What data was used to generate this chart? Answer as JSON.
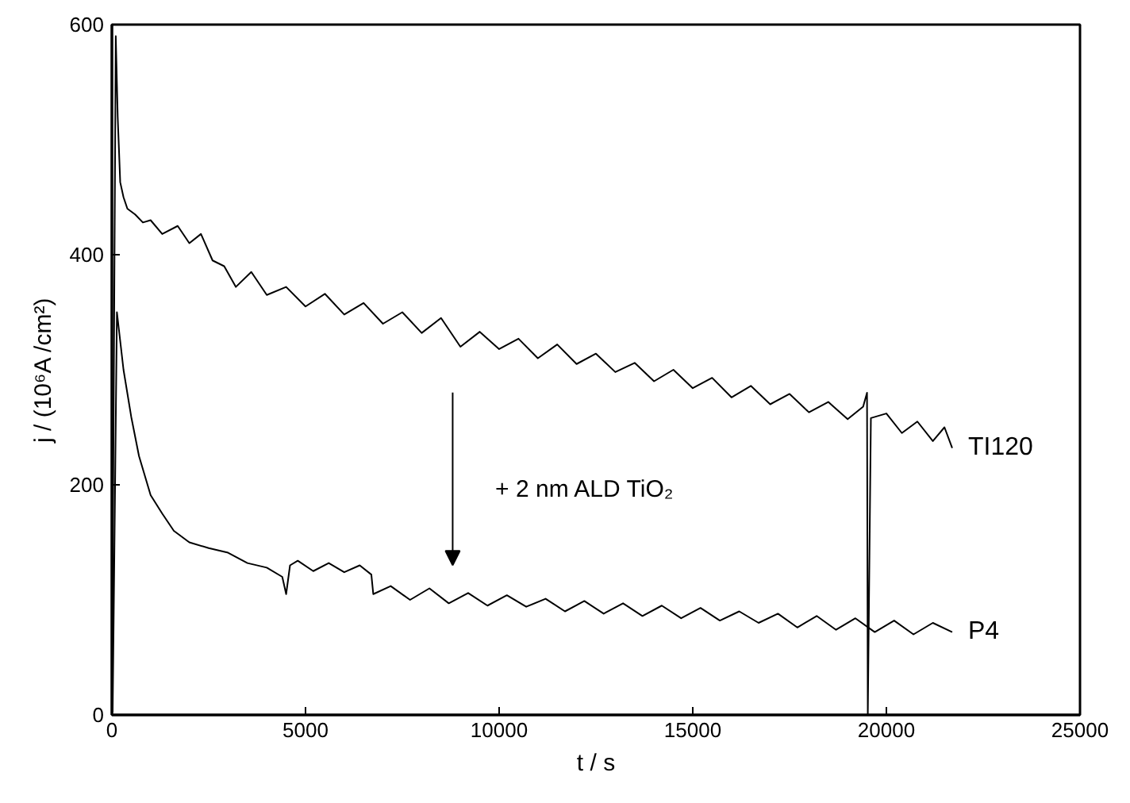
{
  "chart_data": {
    "type": "line",
    "xlabel": "t / s",
    "ylabel": "j / (10⁶A /cm²)",
    "xlim": [
      0,
      25000
    ],
    "xticks": [
      0,
      5000,
      10000,
      15000,
      20000,
      25000
    ],
    "ylim": [
      0,
      600
    ],
    "yticks": [
      0,
      200,
      400,
      600
    ],
    "grid": false,
    "legend": false,
    "marker": "none",
    "line_style": "solid",
    "annotations": [
      "+ 2 nm ALD TiO₂"
    ],
    "series": [
      {
        "name": "TI120",
        "color": "#000000",
        "x": [
          0,
          100,
          150,
          215,
          300,
          400,
          600,
          800,
          1000,
          1300,
          1700,
          2000,
          2300,
          2600,
          2900,
          3200,
          3600,
          4000,
          4500,
          5000,
          5500,
          6000,
          6500,
          7000,
          7500,
          8000,
          8500,
          9000,
          9500,
          10000,
          10500,
          11000,
          11500,
          12000,
          12500,
          13000,
          13500,
          14000,
          14500,
          15000,
          15500,
          16000,
          16500,
          17000,
          17500,
          18000,
          18500,
          19000,
          19400,
          19500,
          19520,
          19600,
          20000,
          20400,
          20800,
          21200,
          21500,
          21700
        ],
        "values": [
          0,
          590,
          520,
          463,
          450,
          440,
          435,
          428,
          430,
          418,
          425,
          410,
          418,
          395,
          390,
          372,
          385,
          365,
          372,
          355,
          366,
          348,
          358,
          340,
          350,
          332,
          345,
          320,
          333,
          318,
          327,
          310,
          322,
          305,
          314,
          298,
          306,
          290,
          300,
          284,
          293,
          276,
          286,
          270,
          279,
          263,
          272,
          257,
          268,
          280,
          0,
          258,
          262,
          245,
          255,
          238,
          250,
          232
        ]
      },
      {
        "name": "P4",
        "color": "#000000",
        "x": [
          0,
          20,
          130,
          300,
          500,
          700,
          1000,
          1300,
          1600,
          2000,
          2500,
          3000,
          3500,
          4000,
          4400,
          4500,
          4600,
          4800,
          5200,
          5600,
          6000,
          6400,
          6700,
          6750,
          7200,
          7700,
          8200,
          8700,
          9200,
          9700,
          10200,
          10700,
          11200,
          11700,
          12200,
          12700,
          13200,
          13700,
          14200,
          14700,
          15200,
          15700,
          16200,
          16700,
          17200,
          17700,
          18200,
          18700,
          19200,
          19700,
          20200,
          20700,
          21200,
          21700
        ],
        "values": [
          54,
          3,
          350,
          300,
          259,
          225,
          191,
          175,
          160,
          150,
          145,
          141,
          132,
          128,
          120,
          105,
          130,
          134,
          125,
          132,
          124,
          130,
          122,
          105,
          112,
          100,
          110,
          97,
          106,
          95,
          104,
          94,
          101,
          90,
          99,
          88,
          97,
          86,
          95,
          84,
          93,
          82,
          90,
          80,
          88,
          76,
          86,
          74,
          84,
          72,
          82,
          70,
          80,
          72
        ]
      }
    ]
  }
}
